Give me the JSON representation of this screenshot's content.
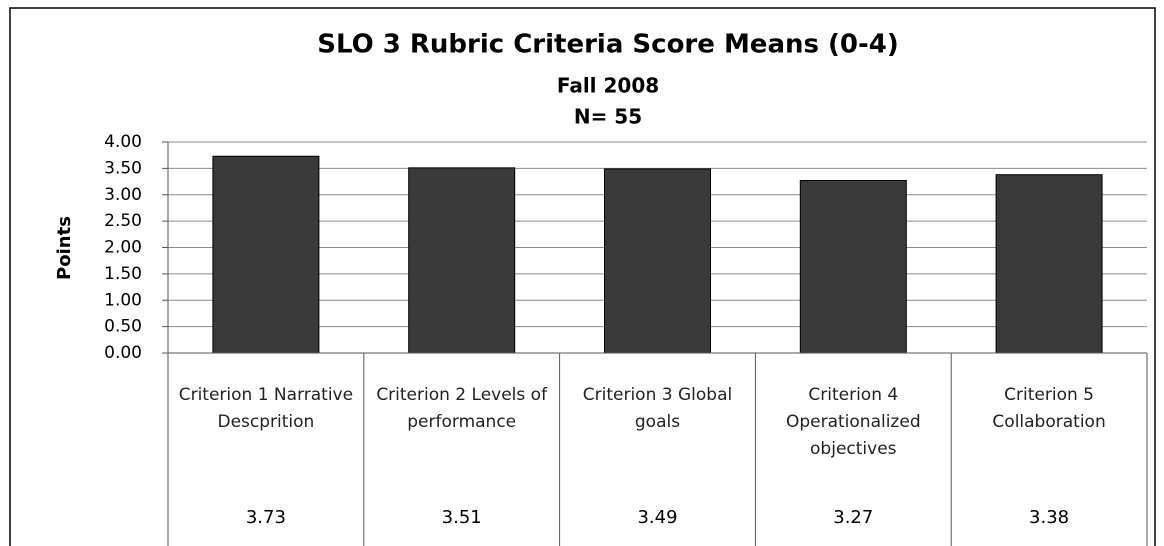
{
  "chart_data": {
    "type": "bar",
    "title": "SLO 3 Rubric Criteria Score Means (0-4)",
    "subtitle": [
      "Fall 2008",
      "N= 55"
    ],
    "y_label": "Points",
    "categories": [
      "Criterion 1 Narrative Descprition",
      "Criterion 2 Levels of performance",
      "Criterion 3 Global goals",
      "Criterion 4 Operationalized objectives",
      "Criterion 5 Collaboration"
    ],
    "values": [
      3.73,
      3.51,
      3.49,
      3.27,
      3.38
    ],
    "color": "#3a3a3a",
    "ylim": [
      0,
      4
    ],
    "yticks": [
      {
        "value": 0,
        "label": "0.00"
      },
      {
        "value": 0.5,
        "label": "0.50"
      },
      {
        "value": 1,
        "label": "1.00"
      },
      {
        "value": 1.5,
        "label": "1.50"
      },
      {
        "value": 2,
        "label": "2.00"
      },
      {
        "value": 2.5,
        "label": "2.50"
      },
      {
        "value": 3,
        "label": "3.00"
      },
      {
        "value": 3.5,
        "label": "3.50"
      },
      {
        "value": 4,
        "label": "4.00"
      }
    ],
    "grid": true,
    "data_table": true
  }
}
